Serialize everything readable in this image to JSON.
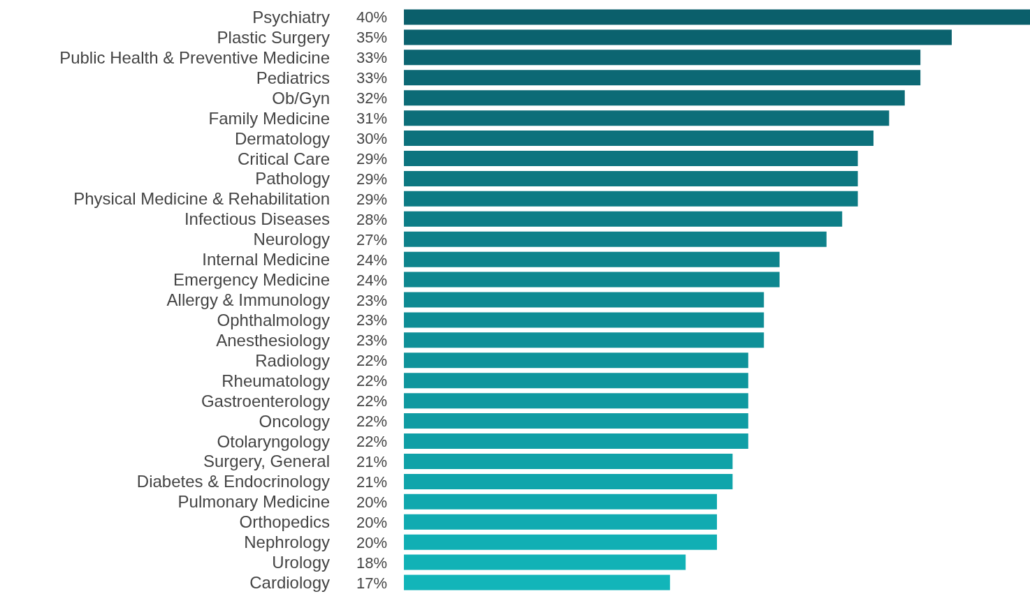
{
  "chart_data": {
    "type": "bar",
    "orientation": "horizontal",
    "categories": [
      "Psychiatry",
      "Plastic Surgery",
      "Public Health & Preventive Medicine",
      "Pediatrics",
      "Ob/Gyn",
      "Family Medicine",
      "Dermatology",
      "Critical Care",
      "Pathology",
      "Physical Medicine & Rehabilitation",
      "Infectious Diseases",
      "Neurology",
      "Internal Medicine",
      "Emergency Medicine",
      "Allergy & Immunology",
      "Ophthalmology",
      "Anesthesiology",
      "Radiology",
      "Rheumatology",
      "Gastroenterology",
      "Oncology",
      "Otolaryngology",
      "Surgery, General",
      "Diabetes & Endocrinology",
      "Pulmonary Medicine",
      "Orthopedics",
      "Nephrology",
      "Urology",
      "Cardiology"
    ],
    "values": [
      40,
      35,
      33,
      33,
      32,
      31,
      30,
      29,
      29,
      29,
      28,
      27,
      24,
      24,
      23,
      23,
      23,
      22,
      22,
      22,
      22,
      22,
      21,
      21,
      20,
      20,
      20,
      18,
      17
    ],
    "value_labels": [
      "40%",
      "35%",
      "33%",
      "33%",
      "32%",
      "31%",
      "30%",
      "29%",
      "29%",
      "29%",
      "28%",
      "27%",
      "24%",
      "24%",
      "23%",
      "23%",
      "23%",
      "22%",
      "22%",
      "22%",
      "22%",
      "22%",
      "21%",
      "21%",
      "20%",
      "20%",
      "20%",
      "18%",
      "17%"
    ],
    "colors": [
      "#0b5f6b",
      "#0b626e",
      "#0c6571",
      "#0c6874",
      "#0c6b76",
      "#0c6e79",
      "#0c717c",
      "#0d747f",
      "#0d7881",
      "#0d7b84",
      "#0d7e87",
      "#0e818a",
      "#0e848c",
      "#0e878f",
      "#0e8a92",
      "#0e8d95",
      "#0f9098",
      "#0f939a",
      "#0f969d",
      "#0f99a0",
      "#109ca3",
      "#109fa6",
      "#10a2a8",
      "#10a5ab",
      "#10a8ae",
      "#11abb1",
      "#11afb4",
      "#11b2b6",
      "#12b5b9"
    ],
    "legend": false,
    "grid": false
  }
}
